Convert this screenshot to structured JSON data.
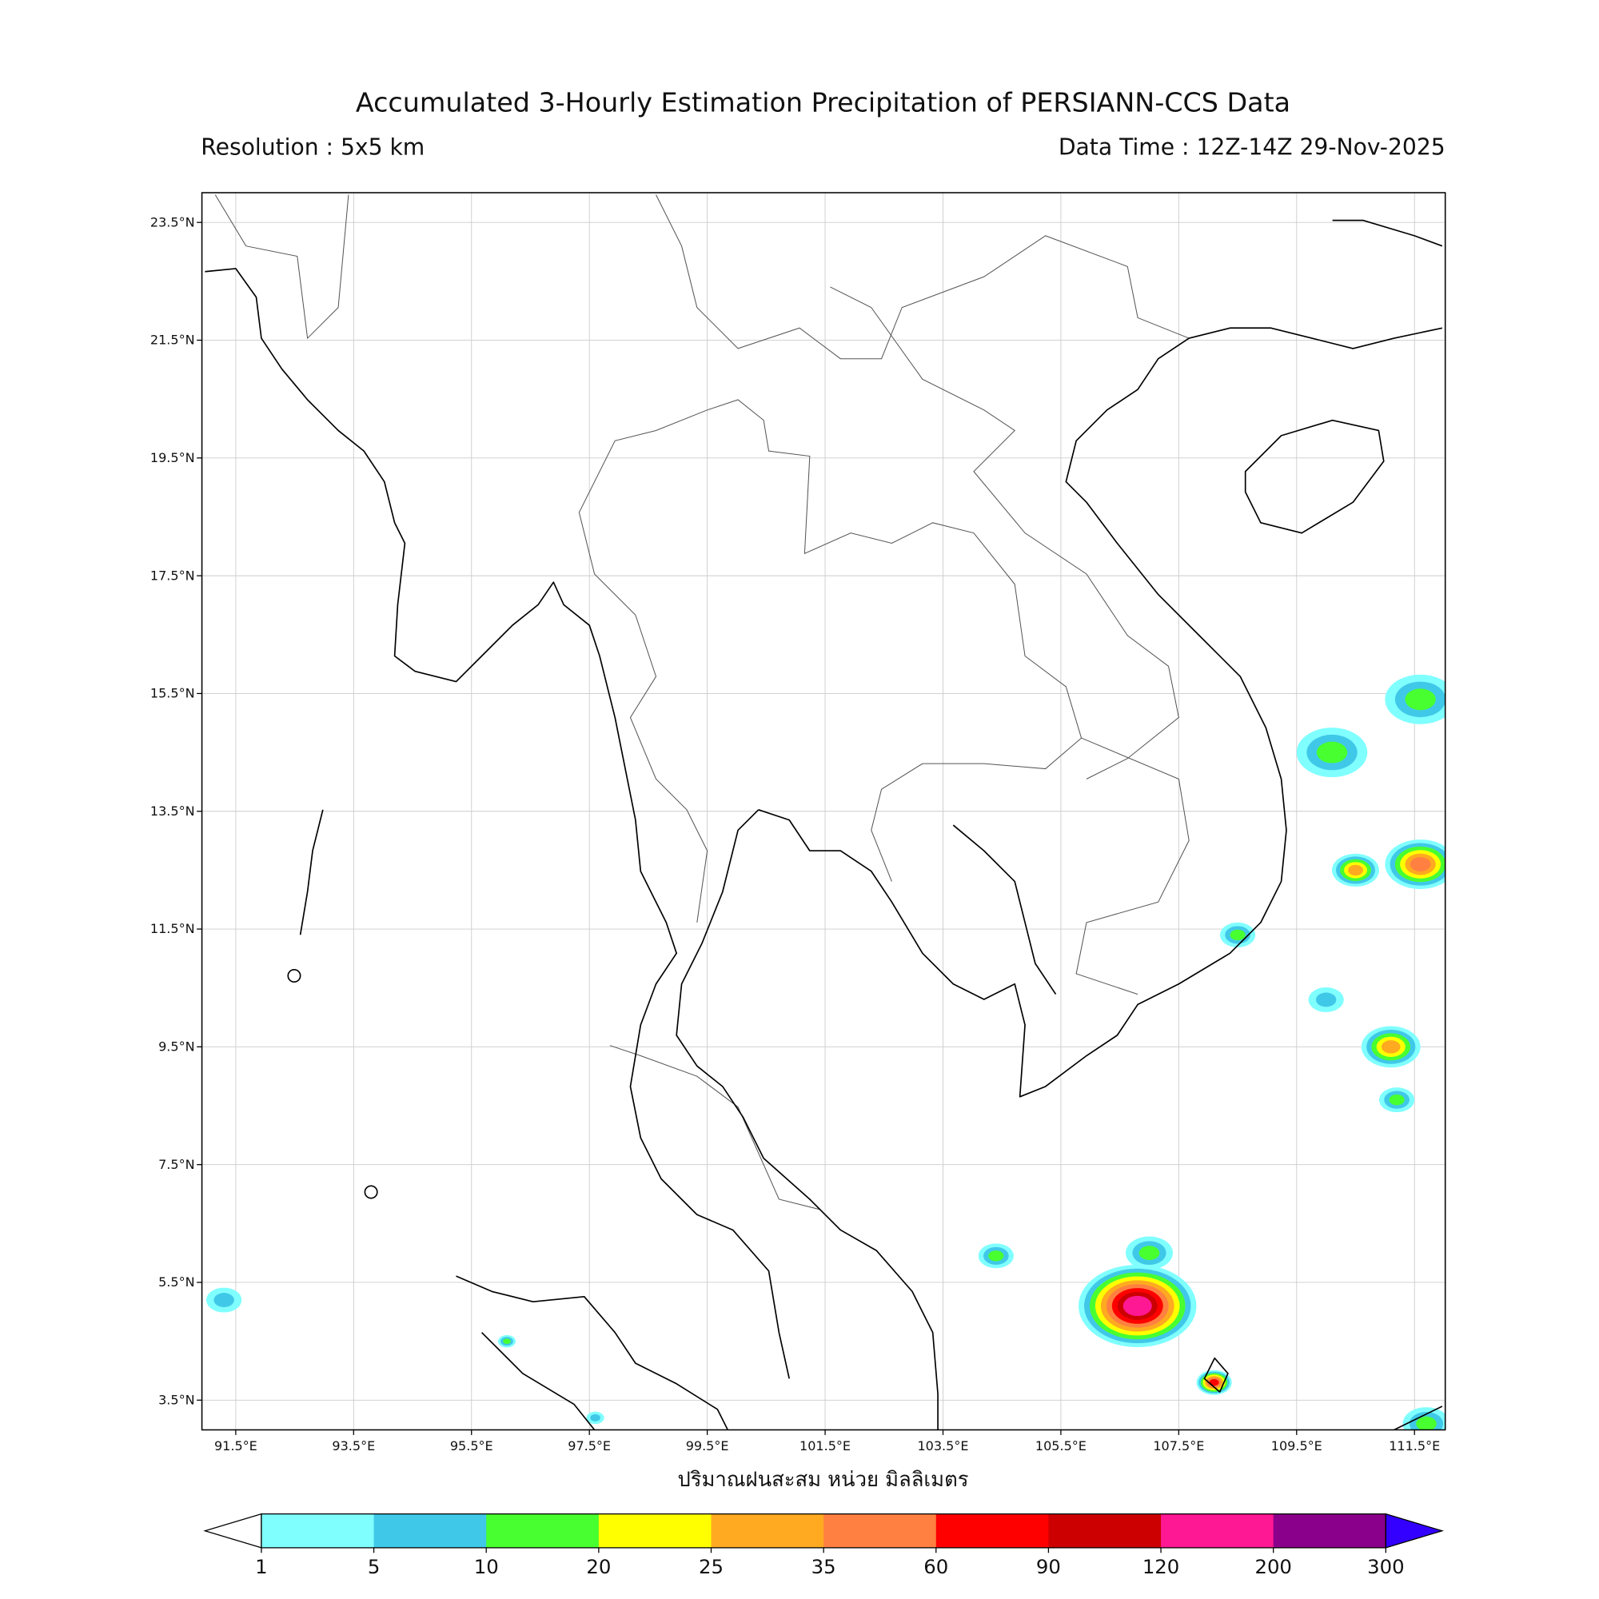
{
  "title": "Accumulated 3-Hourly Estimation Precipitation of PERSIANN-CCS Data",
  "resolution": "Resolution : 5x5 km",
  "data_time": "Data Time : 12Z-14Z 29-Nov-2025",
  "axis_label": "ปริมาณฝนสะสม หน่วย มิลลิเมตร",
  "lon_ticks": [
    "91.5°E",
    "93.5°E",
    "95.5°E",
    "97.5°E",
    "99.5°E",
    "101.5°E",
    "103.5°E",
    "105.5°E",
    "107.5°E",
    "109.5°E",
    "111.5°E"
  ],
  "lat_ticks": [
    "23.5°N",
    "21.5°N",
    "19.5°N",
    "17.5°N",
    "15.5°N",
    "13.5°N",
    "11.5°N",
    "9.5°N",
    "7.5°N",
    "5.5°N",
    "3.5°N"
  ],
  "colorbar": {
    "levels": [
      "1",
      "5",
      "10",
      "20",
      "25",
      "35",
      "60",
      "90",
      "120",
      "200",
      "300"
    ],
    "colors": [
      "#80ffff",
      "#40c8e8",
      "#48ff30",
      "#ffff00",
      "#ffaa20",
      "#ff8040",
      "#ff0000",
      "#cc0000",
      "#ff1893",
      "#8b008b"
    ],
    "under_color": "#ffffff",
    "over_color": "#3300ff"
  },
  "map_extent": {
    "lon": [
      91,
      112
    ],
    "lat": [
      3,
      24
    ]
  },
  "rain_cells": [
    {
      "lon": 106.8,
      "lat": 5.1,
      "peak_mm": 120,
      "extent_deg": 1.0
    },
    {
      "lon": 111.6,
      "lat": 12.6,
      "peak_mm": 35,
      "extent_deg": 0.6
    },
    {
      "lon": 110.1,
      "lat": 14.5,
      "peak_mm": 10,
      "extent_deg": 0.6
    },
    {
      "lon": 110.5,
      "lat": 12.5,
      "peak_mm": 25,
      "extent_deg": 0.4
    },
    {
      "lon": 111.6,
      "lat": 15.4,
      "peak_mm": 10,
      "extent_deg": 0.6
    },
    {
      "lon": 111.1,
      "lat": 9.5,
      "peak_mm": 25,
      "extent_deg": 0.5
    },
    {
      "lon": 107.0,
      "lat": 6.0,
      "peak_mm": 10,
      "extent_deg": 0.4
    },
    {
      "lon": 104.4,
      "lat": 5.95,
      "peak_mm": 10,
      "extent_deg": 0.3
    },
    {
      "lon": 108.1,
      "lat": 3.8,
      "peak_mm": 60,
      "extent_deg": 0.3
    },
    {
      "lon": 108.5,
      "lat": 11.4,
      "peak_mm": 10,
      "extent_deg": 0.3
    },
    {
      "lon": 96.1,
      "lat": 4.5,
      "peak_mm": 10,
      "extent_deg": 0.15
    },
    {
      "lon": 91.3,
      "lat": 5.2,
      "peak_mm": 5,
      "extent_deg": 0.3
    },
    {
      "lon": 111.7,
      "lat": 3.1,
      "peak_mm": 10,
      "extent_deg": 0.4
    },
    {
      "lon": 97.6,
      "lat": 3.2,
      "peak_mm": 5,
      "extent_deg": 0.15
    },
    {
      "lon": 110.0,
      "lat": 10.3,
      "peak_mm": 5,
      "extent_deg": 0.3
    },
    {
      "lon": 111.2,
      "lat": 8.6,
      "peak_mm": 10,
      "extent_deg": 0.3
    }
  ]
}
